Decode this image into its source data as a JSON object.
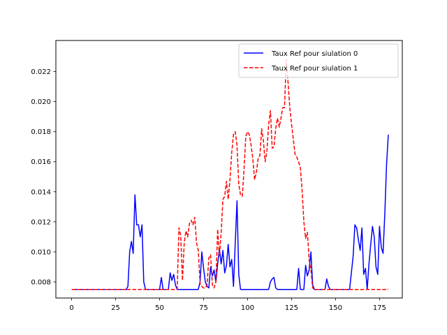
{
  "chart_data": {
    "type": "line",
    "title": "",
    "xlabel": "",
    "ylabel": "",
    "xlim": [
      -8.95,
      187.95
    ],
    "ylim": [
      0.00693,
      0.02407
    ],
    "grid": false,
    "legend_position": "top-right",
    "x_ticks": [
      0,
      25,
      50,
      75,
      100,
      125,
      150,
      175
    ],
    "x_tick_labels": [
      "0",
      "25",
      "50",
      "75",
      "100",
      "125",
      "150",
      "175"
    ],
    "y_ticks": [
      0.008,
      0.01,
      0.012,
      0.014,
      0.016,
      0.018,
      0.02,
      0.022
    ],
    "y_tick_labels": [
      "0.008",
      "0.010",
      "0.012",
      "0.014",
      "0.016",
      "0.018",
      "0.020",
      "0.022"
    ],
    "series": [
      {
        "name": "Taux Ref pour siulation 0",
        "color": "#0000ff",
        "style": "solid",
        "points": [
          [
            0,
            0.0075
          ],
          [
            31,
            0.0075
          ],
          [
            32,
            0.0077
          ],
          [
            33,
            0.01
          ],
          [
            34,
            0.0107
          ],
          [
            35,
            0.0099
          ],
          [
            36,
            0.0138
          ],
          [
            37,
            0.0118
          ],
          [
            38,
            0.0118
          ],
          [
            39,
            0.011
          ],
          [
            40,
            0.0118
          ],
          [
            41,
            0.008
          ],
          [
            42,
            0.0075
          ],
          [
            50,
            0.0075
          ],
          [
            51,
            0.0083
          ],
          [
            52,
            0.0075
          ],
          [
            55,
            0.0075
          ],
          [
            56,
            0.0086
          ],
          [
            57,
            0.0081
          ],
          [
            58,
            0.0085
          ],
          [
            59,
            0.0078
          ],
          [
            60,
            0.0075
          ],
          [
            72,
            0.0075
          ],
          [
            73,
            0.008
          ],
          [
            74,
            0.01
          ],
          [
            75,
            0.0089
          ],
          [
            76,
            0.008
          ],
          [
            77,
            0.0077
          ],
          [
            78,
            0.0076
          ],
          [
            79,
            0.009
          ],
          [
            80,
            0.0084
          ],
          [
            81,
            0.0088
          ],
          [
            82,
            0.008
          ],
          [
            83,
            0.0092
          ],
          [
            84,
            0.0102
          ],
          [
            85,
            0.0092
          ],
          [
            86,
            0.0101
          ],
          [
            87,
            0.0086
          ],
          [
            88,
            0.0091
          ],
          [
            89,
            0.0105
          ],
          [
            90,
            0.009
          ],
          [
            91,
            0.0095
          ],
          [
            92,
            0.0077
          ],
          [
            93,
            0.0106
          ],
          [
            94,
            0.0134
          ],
          [
            95,
            0.0085
          ],
          [
            96,
            0.0075
          ],
          [
            112,
            0.0075
          ],
          [
            113,
            0.008
          ],
          [
            114,
            0.0082
          ],
          [
            115,
            0.0083
          ],
          [
            116,
            0.0076
          ],
          [
            117,
            0.0075
          ],
          [
            128,
            0.0075
          ],
          [
            129,
            0.0089
          ],
          [
            130,
            0.0075
          ],
          [
            132,
            0.0075
          ],
          [
            133,
            0.0091
          ],
          [
            134,
            0.0084
          ],
          [
            135,
            0.0088
          ],
          [
            136,
            0.01
          ],
          [
            137,
            0.0078
          ],
          [
            138,
            0.0075
          ],
          [
            144,
            0.0075
          ],
          [
            145,
            0.0082
          ],
          [
            146,
            0.0077
          ],
          [
            147,
            0.0075
          ],
          [
            158,
            0.0075
          ],
          [
            160,
            0.0097
          ],
          [
            161,
            0.0118
          ],
          [
            162,
            0.0116
          ],
          [
            163,
            0.0108
          ],
          [
            164,
            0.0101
          ],
          [
            165,
            0.0116
          ],
          [
            166,
            0.0085
          ],
          [
            167,
            0.0089
          ],
          [
            168,
            0.0075
          ],
          [
            169,
            0.0092
          ],
          [
            170,
            0.0105
          ],
          [
            171,
            0.0117
          ],
          [
            172,
            0.011
          ],
          [
            173,
            0.009
          ],
          [
            174,
            0.0085
          ],
          [
            175,
            0.0117
          ],
          [
            176,
            0.0103
          ],
          [
            177,
            0.0099
          ],
          [
            178,
            0.0125
          ],
          [
            179,
            0.0158
          ],
          [
            180,
            0.0178
          ]
        ]
      },
      {
        "name": "Taux Ref pour siulation 1",
        "color": "#ff0000",
        "style": "dashed",
        "points": [
          [
            0,
            0.0075
          ],
          [
            60,
            0.0075
          ],
          [
            61,
            0.0116
          ],
          [
            62,
            0.0111
          ],
          [
            63,
            0.0081
          ],
          [
            64,
            0.0106
          ],
          [
            65,
            0.0114
          ],
          [
            66,
            0.011
          ],
          [
            67,
            0.0119
          ],
          [
            68,
            0.0121
          ],
          [
            69,
            0.0118
          ],
          [
            70,
            0.0123
          ],
          [
            71,
            0.0106
          ],
          [
            72,
            0.0101
          ],
          [
            73,
            0.0079
          ],
          [
            74,
            0.0077
          ],
          [
            75,
            0.0076
          ],
          [
            76,
            0.0076
          ],
          [
            77,
            0.0078
          ],
          [
            78,
            0.0096
          ],
          [
            79,
            0.0098
          ],
          [
            80,
            0.0078
          ],
          [
            81,
            0.0076
          ],
          [
            82,
            0.008
          ],
          [
            83,
            0.0115
          ],
          [
            84,
            0.0097
          ],
          [
            85,
            0.0113
          ],
          [
            86,
            0.0135
          ],
          [
            87,
            0.0137
          ],
          [
            88,
            0.0147
          ],
          [
            89,
            0.0135
          ],
          [
            90,
            0.0148
          ],
          [
            91,
            0.0166
          ],
          [
            92,
            0.0178
          ],
          [
            93,
            0.018
          ],
          [
            94,
            0.0171
          ],
          [
            95,
            0.0145
          ],
          [
            96,
            0.0138
          ],
          [
            97,
            0.0137
          ],
          [
            98,
            0.0155
          ],
          [
            99,
            0.0177
          ],
          [
            100,
            0.018
          ],
          [
            101,
            0.0178
          ],
          [
            102,
            0.0171
          ],
          [
            103,
            0.0162
          ],
          [
            104,
            0.0148
          ],
          [
            105,
            0.0153
          ],
          [
            106,
            0.0162
          ],
          [
            107,
            0.0164
          ],
          [
            108,
            0.0182
          ],
          [
            109,
            0.0174
          ],
          [
            110,
            0.016
          ],
          [
            111,
            0.0167
          ],
          [
            112,
            0.0185
          ],
          [
            113,
            0.0194
          ],
          [
            114,
            0.0169
          ],
          [
            115,
            0.017
          ],
          [
            116,
            0.0182
          ],
          [
            117,
            0.0189
          ],
          [
            118,
            0.0183
          ],
          [
            119,
            0.0189
          ],
          [
            120,
            0.0196
          ],
          [
            121,
            0.0196
          ],
          [
            122,
            0.0228
          ],
          [
            123,
            0.0213
          ],
          [
            124,
            0.0196
          ],
          [
            125,
            0.0185
          ],
          [
            126,
            0.0175
          ],
          [
            127,
            0.0165
          ],
          [
            128,
            0.0163
          ],
          [
            129,
            0.016
          ],
          [
            130,
            0.0156
          ],
          [
            131,
            0.0141
          ],
          [
            132,
            0.012
          ],
          [
            133,
            0.0109
          ],
          [
            134,
            0.0113
          ],
          [
            135,
            0.0095
          ],
          [
            136,
            0.0088
          ],
          [
            137,
            0.0076
          ],
          [
            138,
            0.0075
          ],
          [
            180,
            0.0075
          ]
        ]
      }
    ]
  }
}
